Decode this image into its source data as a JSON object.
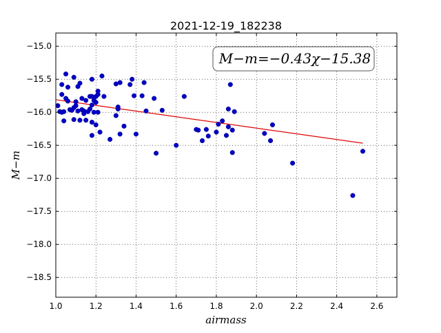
{
  "chart_data": {
    "type": "scatter",
    "title": "2021-12-19_182238",
    "xlabel": "airmass",
    "ylabel": "M−m",
    "xlim": [
      1.0,
      2.7
    ],
    "ylim": [
      -18.8,
      -14.8
    ],
    "y_inverted": true,
    "xticks": [
      "1.0",
      "1.2",
      "1.4",
      "1.6",
      "1.8",
      "2.0",
      "2.2",
      "2.4",
      "2.6"
    ],
    "yticks": [
      "−15.0",
      "−15.5",
      "−16.0",
      "−16.5",
      "−17.0",
      "−17.5",
      "−18.0",
      "−18.5"
    ],
    "grid": true,
    "annotation": "M−m=−0.43χ−15.38",
    "fit_line": {
      "slope": -0.43,
      "intercept": -15.38,
      "x_range": [
        1.0,
        2.53
      ],
      "color": "#e00000"
    },
    "marker_color": "#0000c8",
    "points": [
      [
        1.01,
        -15.9
      ],
      [
        1.02,
        -15.99
      ],
      [
        1.03,
        -16.0
      ],
      [
        1.03,
        -15.73
      ],
      [
        1.03,
        -15.58
      ],
      [
        1.04,
        -16.13
      ],
      [
        1.04,
        -15.99
      ],
      [
        1.05,
        -15.42
      ],
      [
        1.05,
        -15.79
      ],
      [
        1.06,
        -15.83
      ],
      [
        1.06,
        -15.62
      ],
      [
        1.07,
        -15.96
      ],
      [
        1.08,
        -15.97
      ],
      [
        1.09,
        -15.47
      ],
      [
        1.09,
        -15.93
      ],
      [
        1.09,
        -16.11
      ],
      [
        1.1,
        -15.9
      ],
      [
        1.1,
        -15.84
      ],
      [
        1.11,
        -15.61
      ],
      [
        1.11,
        -15.98
      ],
      [
        1.12,
        -15.56
      ],
      [
        1.12,
        -16.12
      ],
      [
        1.13,
        -15.79
      ],
      [
        1.13,
        -15.96
      ],
      [
        1.14,
        -15.98
      ],
      [
        1.14,
        -16.02
      ],
      [
        1.15,
        -16.12
      ],
      [
        1.15,
        -15.82
      ],
      [
        1.16,
        -15.99
      ],
      [
        1.17,
        -15.76
      ],
      [
        1.17,
        -15.95
      ],
      [
        1.18,
        -15.5
      ],
      [
        1.18,
        -15.76
      ],
      [
        1.18,
        -15.89
      ],
      [
        1.18,
        -16.15
      ],
      [
        1.18,
        -16.35
      ],
      [
        1.19,
        -16.0
      ],
      [
        1.19,
        -15.82
      ],
      [
        1.2,
        -16.19
      ],
      [
        1.2,
        -15.85
      ],
      [
        1.2,
        -15.76
      ],
      [
        1.21,
        -15.73
      ],
      [
        1.21,
        -16.0
      ],
      [
        1.21,
        -15.68
      ],
      [
        1.22,
        -16.3
      ],
      [
        1.23,
        -15.45
      ],
      [
        1.24,
        -15.76
      ],
      [
        1.27,
        -16.41
      ],
      [
        1.3,
        -15.57
      ],
      [
        1.3,
        -16.05
      ],
      [
        1.31,
        -15.95
      ],
      [
        1.31,
        -15.92
      ],
      [
        1.32,
        -16.33
      ],
      [
        1.32,
        -15.55
      ],
      [
        1.34,
        -16.21
      ],
      [
        1.37,
        -15.58
      ],
      [
        1.38,
        -15.5
      ],
      [
        1.39,
        -15.75
      ],
      [
        1.4,
        -16.33
      ],
      [
        1.43,
        -15.75
      ],
      [
        1.44,
        -15.55
      ],
      [
        1.45,
        -15.98
      ],
      [
        1.49,
        -15.79
      ],
      [
        1.5,
        -16.62
      ],
      [
        1.53,
        -15.97
      ],
      [
        1.6,
        -16.5
      ],
      [
        1.64,
        -15.76
      ],
      [
        1.7,
        -16.26
      ],
      [
        1.71,
        -16.27
      ],
      [
        1.73,
        -16.43
      ],
      [
        1.75,
        -16.26
      ],
      [
        1.76,
        -16.36
      ],
      [
        1.8,
        -16.3
      ],
      [
        1.81,
        -16.18
      ],
      [
        1.83,
        -16.13
      ],
      [
        1.85,
        -16.35
      ],
      [
        1.86,
        -15.95
      ],
      [
        1.86,
        -16.22
      ],
      [
        1.87,
        -15.58
      ],
      [
        1.88,
        -16.61
      ],
      [
        1.88,
        -16.27
      ],
      [
        1.89,
        -15.99
      ],
      [
        2.04,
        -16.32
      ],
      [
        2.07,
        -16.43
      ],
      [
        2.08,
        -16.19
      ],
      [
        2.18,
        -16.77
      ],
      [
        2.48,
        -17.26
      ],
      [
        2.53,
        -16.59
      ]
    ]
  }
}
